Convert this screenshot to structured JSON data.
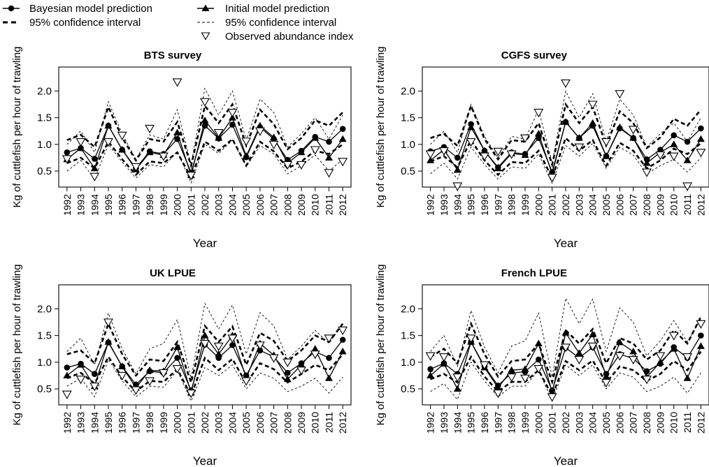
{
  "legend": {
    "bayes_label": "Bayesian model prediction",
    "bayes_ci_label": "95% confidence interval",
    "initial_label": "Initial model prediction",
    "initial_ci_label": "95% confidence interval",
    "observed_label": "Observed abundance index"
  },
  "chart_data": [
    {
      "type": "line",
      "title": "BTS survey",
      "xlabel": "Year",
      "ylabel": "Kg of cuttlefish per hour of trawling",
      "ylim": [
        0.2,
        2.45
      ],
      "yticks": [
        0.5,
        1.0,
        1.5,
        2.0
      ],
      "x": [
        1992,
        1993,
        1994,
        1995,
        1996,
        1997,
        1998,
        1999,
        2000,
        2001,
        2002,
        2003,
        2004,
        2005,
        2006,
        2007,
        2008,
        2009,
        2010,
        2011,
        2012
      ],
      "series": [
        {
          "name": "Bayesian model prediction",
          "values": [
            0.85,
            0.93,
            0.73,
            1.35,
            0.9,
            0.55,
            0.87,
            0.82,
            1.1,
            0.47,
            1.35,
            1.11,
            1.37,
            0.76,
            1.32,
            1.1,
            0.71,
            0.88,
            1.14,
            1.05,
            1.29
          ]
        },
        {
          "name": "Initial model prediction",
          "values": [
            0.72,
            0.93,
            0.55,
            1.35,
            0.9,
            0.53,
            0.85,
            0.8,
            1.22,
            0.42,
            1.45,
            1.12,
            1.5,
            0.78,
            1.35,
            1.13,
            0.65,
            0.85,
            1.12,
            0.75,
            1.1
          ]
        },
        {
          "name": "Observed abundance index",
          "values": [
            0.73,
            1.05,
            0.4,
            1.05,
            1.17,
            0.58,
            1.3,
            0.78,
            2.17,
            0.42,
            1.8,
            1.22,
            1.6,
            1.06,
            1.25,
            1.0,
            0.62,
            0.62,
            0.9,
            0.47,
            0.68
          ]
        },
        {
          "name": "Bayesian 95% CI lower",
          "values": [
            0.65,
            0.75,
            0.55,
            1.05,
            0.72,
            0.43,
            0.68,
            0.65,
            0.85,
            0.38,
            1.05,
            0.88,
            1.1,
            0.6,
            1.05,
            0.87,
            0.55,
            0.68,
            0.88,
            0.82,
            1.0
          ]
        },
        {
          "name": "Bayesian 95% CI upper",
          "values": [
            1.08,
            1.18,
            0.95,
            1.7,
            1.13,
            0.7,
            1.1,
            1.05,
            1.42,
            0.6,
            1.72,
            1.4,
            1.75,
            0.98,
            1.65,
            1.38,
            0.91,
            1.12,
            1.45,
            1.35,
            1.6
          ]
        },
        {
          "name": "Initial 95% CI lower",
          "values": [
            0.5,
            0.7,
            0.35,
            1.0,
            0.67,
            0.37,
            0.62,
            0.58,
            0.87,
            0.28,
            1.0,
            0.83,
            1.08,
            0.58,
            0.98,
            0.82,
            0.45,
            0.6,
            0.8,
            0.5,
            0.72
          ]
        },
        {
          "name": "Initial 95% CI upper",
          "values": [
            1.0,
            1.25,
            0.85,
            1.8,
            1.2,
            0.72,
            1.18,
            1.1,
            1.65,
            0.62,
            2.05,
            1.55,
            2.0,
            1.08,
            1.85,
            1.6,
            0.95,
            1.2,
            1.5,
            1.1,
            1.55
          ]
        }
      ]
    },
    {
      "type": "line",
      "title": "CGFS survey",
      "xlabel": "Year",
      "ylabel": "Kg of cuttlefish per hour of trawling",
      "ylim": [
        0.2,
        2.45
      ],
      "yticks": [
        0.5,
        1.0,
        1.5,
        2.0
      ],
      "x": [
        1992,
        1993,
        1994,
        1995,
        1996,
        1997,
        1998,
        1999,
        2000,
        2001,
        2002,
        2003,
        2004,
        2005,
        2006,
        2007,
        2008,
        2009,
        2010,
        2011,
        2012
      ],
      "series": [
        {
          "name": "Bayesian model prediction",
          "values": [
            0.87,
            0.95,
            0.75,
            1.38,
            0.88,
            0.57,
            0.85,
            0.82,
            1.12,
            0.48,
            1.42,
            1.12,
            1.35,
            0.78,
            1.3,
            1.12,
            0.72,
            0.9,
            1.17,
            1.05,
            1.3
          ]
        },
        {
          "name": "Initial model prediction",
          "values": [
            0.7,
            0.9,
            0.52,
            1.32,
            0.88,
            0.55,
            0.83,
            0.8,
            1.2,
            0.45,
            1.42,
            1.12,
            1.4,
            0.78,
            1.32,
            1.12,
            0.65,
            0.85,
            1.0,
            0.7,
            1.1
          ]
        },
        {
          "name": "Observed abundance index",
          "values": [
            0.82,
            0.88,
            0.22,
            1.05,
            0.78,
            0.87,
            0.82,
            1.12,
            1.6,
            0.38,
            2.15,
            0.95,
            1.75,
            1.05,
            1.95,
            1.28,
            0.48,
            0.8,
            0.78,
            0.22,
            0.85
          ]
        },
        {
          "name": "Bayesian 95% CI lower",
          "values": [
            0.68,
            0.78,
            0.57,
            1.08,
            0.7,
            0.43,
            0.67,
            0.65,
            0.88,
            0.37,
            1.12,
            0.88,
            1.08,
            0.6,
            1.03,
            0.88,
            0.55,
            0.7,
            0.92,
            0.82,
            1.02
          ]
        },
        {
          "name": "Bayesian 95% CI upper",
          "values": [
            1.12,
            1.2,
            0.97,
            1.72,
            1.1,
            0.72,
            1.08,
            1.05,
            1.4,
            0.62,
            1.75,
            1.4,
            1.7,
            0.98,
            1.62,
            1.4,
            0.93,
            1.13,
            1.48,
            1.35,
            1.65
          ]
        },
        {
          "name": "Initial 95% CI lower",
          "values": [
            0.45,
            0.65,
            0.35,
            0.95,
            0.62,
            0.35,
            0.58,
            0.55,
            0.82,
            0.27,
            0.98,
            0.78,
            1.02,
            0.55,
            0.95,
            0.8,
            0.45,
            0.6,
            0.72,
            0.48,
            0.75
          ]
        },
        {
          "name": "Initial 95% CI upper",
          "values": [
            1.0,
            1.25,
            0.85,
            1.75,
            1.15,
            0.75,
            1.15,
            1.1,
            1.65,
            0.65,
            2.0,
            1.5,
            1.95,
            1.05,
            1.85,
            1.55,
            0.95,
            1.2,
            1.4,
            1.05,
            1.5
          ]
        }
      ]
    },
    {
      "type": "line",
      "title": "UK LPUE",
      "xlabel": "Year",
      "ylabel": "Kg of cuttlefish per hour of trawling",
      "ylim": [
        0.2,
        2.45
      ],
      "yticks": [
        0.5,
        1.0,
        1.5,
        2.0
      ],
      "x": [
        1992,
        1993,
        1994,
        1995,
        1996,
        1997,
        1998,
        1999,
        2000,
        2001,
        2002,
        2003,
        2004,
        2005,
        2006,
        2007,
        2008,
        2009,
        2010,
        2011,
        2012
      ],
      "series": [
        {
          "name": "Bayesian model prediction",
          "values": [
            0.9,
            0.97,
            0.78,
            1.37,
            0.92,
            0.58,
            0.83,
            0.8,
            1.08,
            0.47,
            1.33,
            1.08,
            1.32,
            0.75,
            1.22,
            1.1,
            0.8,
            0.98,
            1.2,
            1.08,
            1.42
          ]
        },
        {
          "name": "Initial model prediction",
          "values": [
            0.75,
            0.95,
            0.55,
            1.38,
            0.92,
            0.52,
            0.85,
            0.83,
            1.28,
            0.43,
            1.5,
            1.15,
            1.5,
            0.7,
            1.35,
            1.13,
            0.68,
            0.95,
            1.25,
            0.7,
            1.2
          ]
        },
        {
          "name": "Observed abundance index",
          "values": [
            0.4,
            0.68,
            0.55,
            1.75,
            0.75,
            0.48,
            0.65,
            0.8,
            0.88,
            0.42,
            1.35,
            1.3,
            1.45,
            0.65,
            1.32,
            1.08,
            1.0,
            0.85,
            1.15,
            1.45,
            1.6
          ]
        },
        {
          "name": "Bayesian 95% CI lower",
          "values": [
            0.7,
            0.8,
            0.6,
            1.1,
            0.72,
            0.45,
            0.65,
            0.63,
            0.87,
            0.37,
            1.08,
            0.85,
            1.06,
            0.6,
            0.98,
            0.87,
            0.62,
            0.78,
            0.95,
            0.85,
            1.15
          ]
        },
        {
          "name": "Bayesian 95% CI upper",
          "values": [
            1.15,
            1.22,
            0.98,
            1.72,
            1.15,
            0.75,
            1.05,
            1.02,
            1.38,
            0.62,
            1.68,
            1.38,
            1.67,
            0.95,
            1.55,
            1.4,
            1.02,
            1.22,
            1.5,
            1.38,
            1.72
          ]
        },
        {
          "name": "Initial 95% CI lower",
          "values": [
            0.55,
            0.7,
            0.35,
            1.05,
            0.65,
            0.35,
            0.55,
            0.53,
            0.85,
            0.27,
            0.9,
            0.75,
            0.95,
            0.5,
            0.8,
            0.7,
            0.45,
            0.55,
            0.7,
            0.42,
            0.72
          ]
        },
        {
          "name": "Initial 95% CI upper",
          "values": [
            1.2,
            1.45,
            0.95,
            1.92,
            1.25,
            0.78,
            1.25,
            1.35,
            1.8,
            0.7,
            2.1,
            1.62,
            2.07,
            1.15,
            1.93,
            1.68,
            1.05,
            1.3,
            1.6,
            1.35,
            1.72
          ]
        }
      ]
    },
    {
      "type": "line",
      "title": "French LPUE",
      "xlabel": "Year",
      "ylabel": "Kg of cuttlefish per hour of trawling",
      "ylim": [
        0.2,
        2.45
      ],
      "yticks": [
        0.5,
        1.0,
        1.5,
        2.0
      ],
      "x": [
        1992,
        1993,
        1994,
        1995,
        1996,
        1997,
        1998,
        1999,
        2000,
        2001,
        2002,
        2003,
        2004,
        2005,
        2006,
        2007,
        2008,
        2009,
        2010,
        2011,
        2012
      ],
      "series": [
        {
          "name": "Bayesian model prediction",
          "values": [
            0.87,
            0.98,
            0.78,
            1.38,
            0.92,
            0.56,
            0.8,
            0.82,
            1.05,
            0.47,
            1.27,
            1.08,
            1.28,
            0.78,
            1.15,
            1.07,
            0.83,
            0.97,
            1.28,
            1.08,
            1.5
          ]
        },
        {
          "name": "Initial model prediction",
          "values": [
            0.75,
            0.97,
            0.5,
            1.38,
            0.9,
            0.52,
            0.85,
            0.87,
            1.35,
            0.43,
            1.55,
            1.17,
            1.52,
            0.73,
            1.37,
            1.2,
            0.72,
            1.0,
            1.25,
            0.7,
            1.3
          ]
        },
        {
          "name": "Observed abundance index",
          "values": [
            1.12,
            1.1,
            0.72,
            1.45,
            0.95,
            0.42,
            0.72,
            0.7,
            0.88,
            0.35,
            1.28,
            1.05,
            1.3,
            0.62,
            1.12,
            1.05,
            0.68,
            1.12,
            1.5,
            1.1,
            1.72
          ]
        },
        {
          "name": "Bayesian 95% CI lower",
          "values": [
            0.68,
            0.78,
            0.62,
            1.1,
            0.73,
            0.45,
            0.63,
            0.63,
            0.85,
            0.37,
            1.02,
            0.85,
            1.03,
            0.62,
            0.92,
            0.85,
            0.65,
            0.78,
            1.02,
            0.85,
            1.2
          ]
        },
        {
          "name": "Bayesian 95% CI upper",
          "values": [
            1.1,
            1.25,
            0.98,
            1.72,
            1.15,
            0.73,
            1.02,
            1.05,
            1.35,
            0.63,
            1.6,
            1.35,
            1.62,
            0.98,
            1.45,
            1.35,
            1.05,
            1.22,
            1.6,
            1.35,
            1.85
          ]
        },
        {
          "name": "Initial 95% CI lower",
          "values": [
            0.45,
            0.6,
            0.3,
            1.0,
            0.65,
            0.35,
            0.55,
            0.55,
            0.85,
            0.27,
            0.95,
            0.75,
            0.95,
            0.5,
            0.8,
            0.72,
            0.45,
            0.55,
            0.72,
            0.42,
            0.8
          ]
        },
        {
          "name": "Initial 95% CI upper",
          "values": [
            1.2,
            1.5,
            0.92,
            1.97,
            1.28,
            0.8,
            1.3,
            1.4,
            1.92,
            0.72,
            2.2,
            1.72,
            2.18,
            1.2,
            2.02,
            1.75,
            1.12,
            1.4,
            1.78,
            1.38,
            1.82
          ]
        }
      ]
    }
  ]
}
